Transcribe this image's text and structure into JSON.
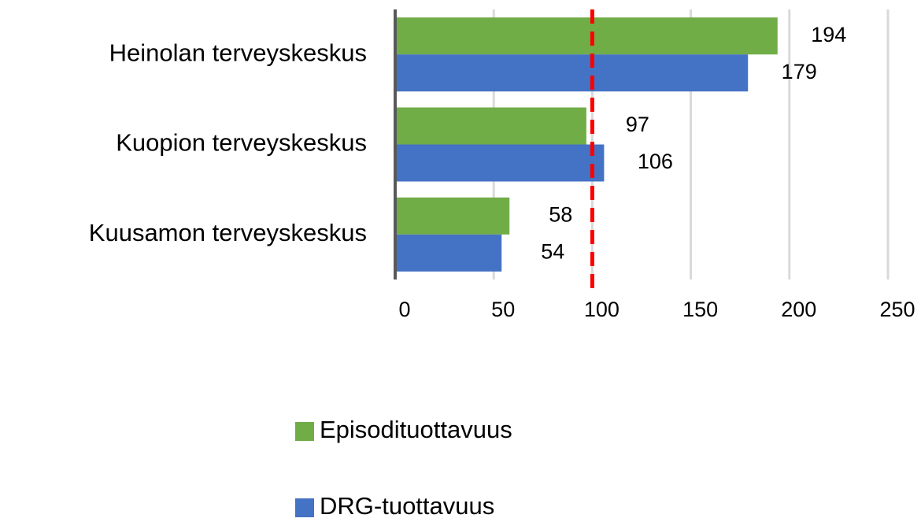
{
  "chart_data": {
    "type": "hbar",
    "categories": [
      "Heinolan terveyskeskus",
      "Kuopion terveyskeskus",
      "Kuusamon terveyskeskus"
    ],
    "series": [
      {
        "name": "Episodituottavuus",
        "color": "#70ad47",
        "values": [
          194,
          97,
          58
        ]
      },
      {
        "name": "DRG-tuottavuus",
        "color": "#4472c4",
        "values": [
          179,
          106,
          54
        ]
      }
    ],
    "xlim": [
      0,
      250
    ],
    "xticks": [
      0,
      50,
      100,
      150,
      200,
      250
    ],
    "grid": true,
    "reference_line": 100,
    "reference_color": "#ff0000",
    "legend": "bottom"
  }
}
